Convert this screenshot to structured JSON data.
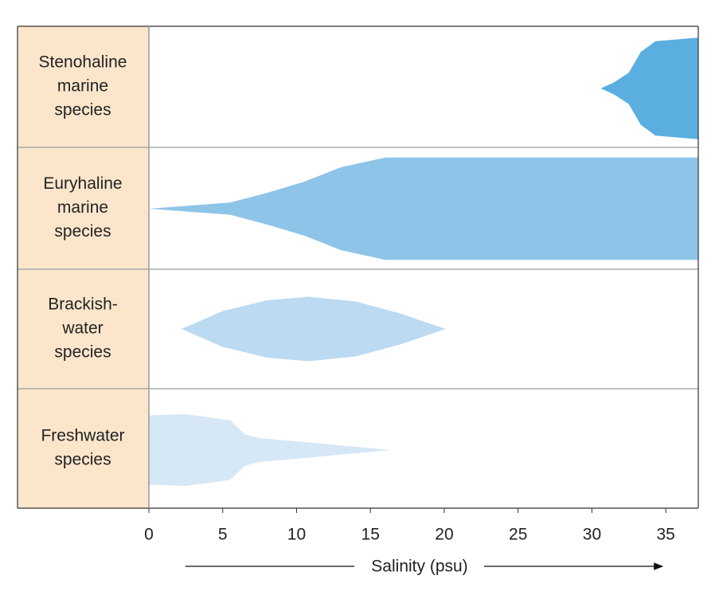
{
  "chart_data": {
    "type": "salinity-profile",
    "row_labels": [
      [
        "Stenohaline",
        "marine",
        "species"
      ],
      [
        "Euryhaline",
        "marine",
        "species"
      ],
      [
        "Brackish-",
        "water",
        "species"
      ],
      [
        "Freshwater",
        "species"
      ]
    ],
    "xlabel": "Salinity (psu)",
    "xlim": [
      0,
      37.2
    ],
    "xticks": [
      0,
      5,
      10,
      15,
      20,
      25,
      30,
      35
    ],
    "series": [
      {
        "color": "#5aafe0",
        "x": [
          30.6,
          31.5,
          32.5,
          33.3,
          34.3,
          37.2
        ],
        "values": [
          0,
          0.05,
          0.13,
          0.3,
          0.39,
          0.42
        ]
      },
      {
        "color": "#8fc4e9",
        "x": [
          0,
          5.5,
          8,
          10.5,
          13,
          16,
          37.2
        ],
        "values": [
          0,
          0.05,
          0.13,
          0.22,
          0.34,
          0.42,
          0.42
        ]
      },
      {
        "color": "#bcdaf1",
        "x": [
          2.2,
          5,
          8,
          10.8,
          14,
          17,
          20.1
        ],
        "values": [
          0,
          0.15,
          0.24,
          0.27,
          0.23,
          0.13,
          0
        ]
      },
      {
        "color": "#d6e7f6",
        "x": [
          0,
          2.5,
          5.5,
          6.5,
          7.5,
          12,
          16.4
        ],
        "values": [
          0.29,
          0.3,
          0.25,
          0.13,
          0.1,
          0.05,
          0
        ]
      }
    ]
  }
}
